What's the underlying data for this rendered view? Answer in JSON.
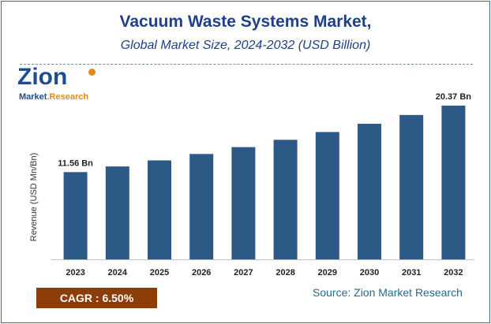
{
  "title": "Vacuum Waste Systems Market,",
  "subtitle": "Global Market Size, 2024-2032 (USD Billion)",
  "logo": {
    "main": "Zion",
    "sub_part1": "Market",
    "sub_part2": ".Research"
  },
  "cagr_label": "CAGR :  6.50%",
  "source": "Source: Zion Market Research",
  "colors": {
    "bar": "#2d5986",
    "title": "#1f3f8a",
    "cagr_bg": "#8c3d08",
    "source": "#1f6b8f"
  },
  "chart_data": {
    "type": "bar",
    "title": "Vacuum Waste Systems Market,",
    "subtitle": "Global Market Size, 2024-2032 (USD Billion)",
    "xlabel": "",
    "ylabel": "Revenue (USD Mn/Bn)",
    "categories": [
      "2023",
      "2024",
      "2025",
      "2026",
      "2027",
      "2028",
      "2029",
      "2030",
      "2031",
      "2032"
    ],
    "values": [
      11.56,
      12.31,
      13.11,
      13.96,
      14.87,
      15.84,
      16.87,
      17.96,
      19.13,
      20.37
    ],
    "data_labels": [
      {
        "index": 0,
        "text": "11.56 Bn"
      },
      {
        "index": 9,
        "text": "20.37 Bn"
      }
    ],
    "ylim": [
      0,
      23.5
    ],
    "grid": false,
    "legend": "none"
  }
}
